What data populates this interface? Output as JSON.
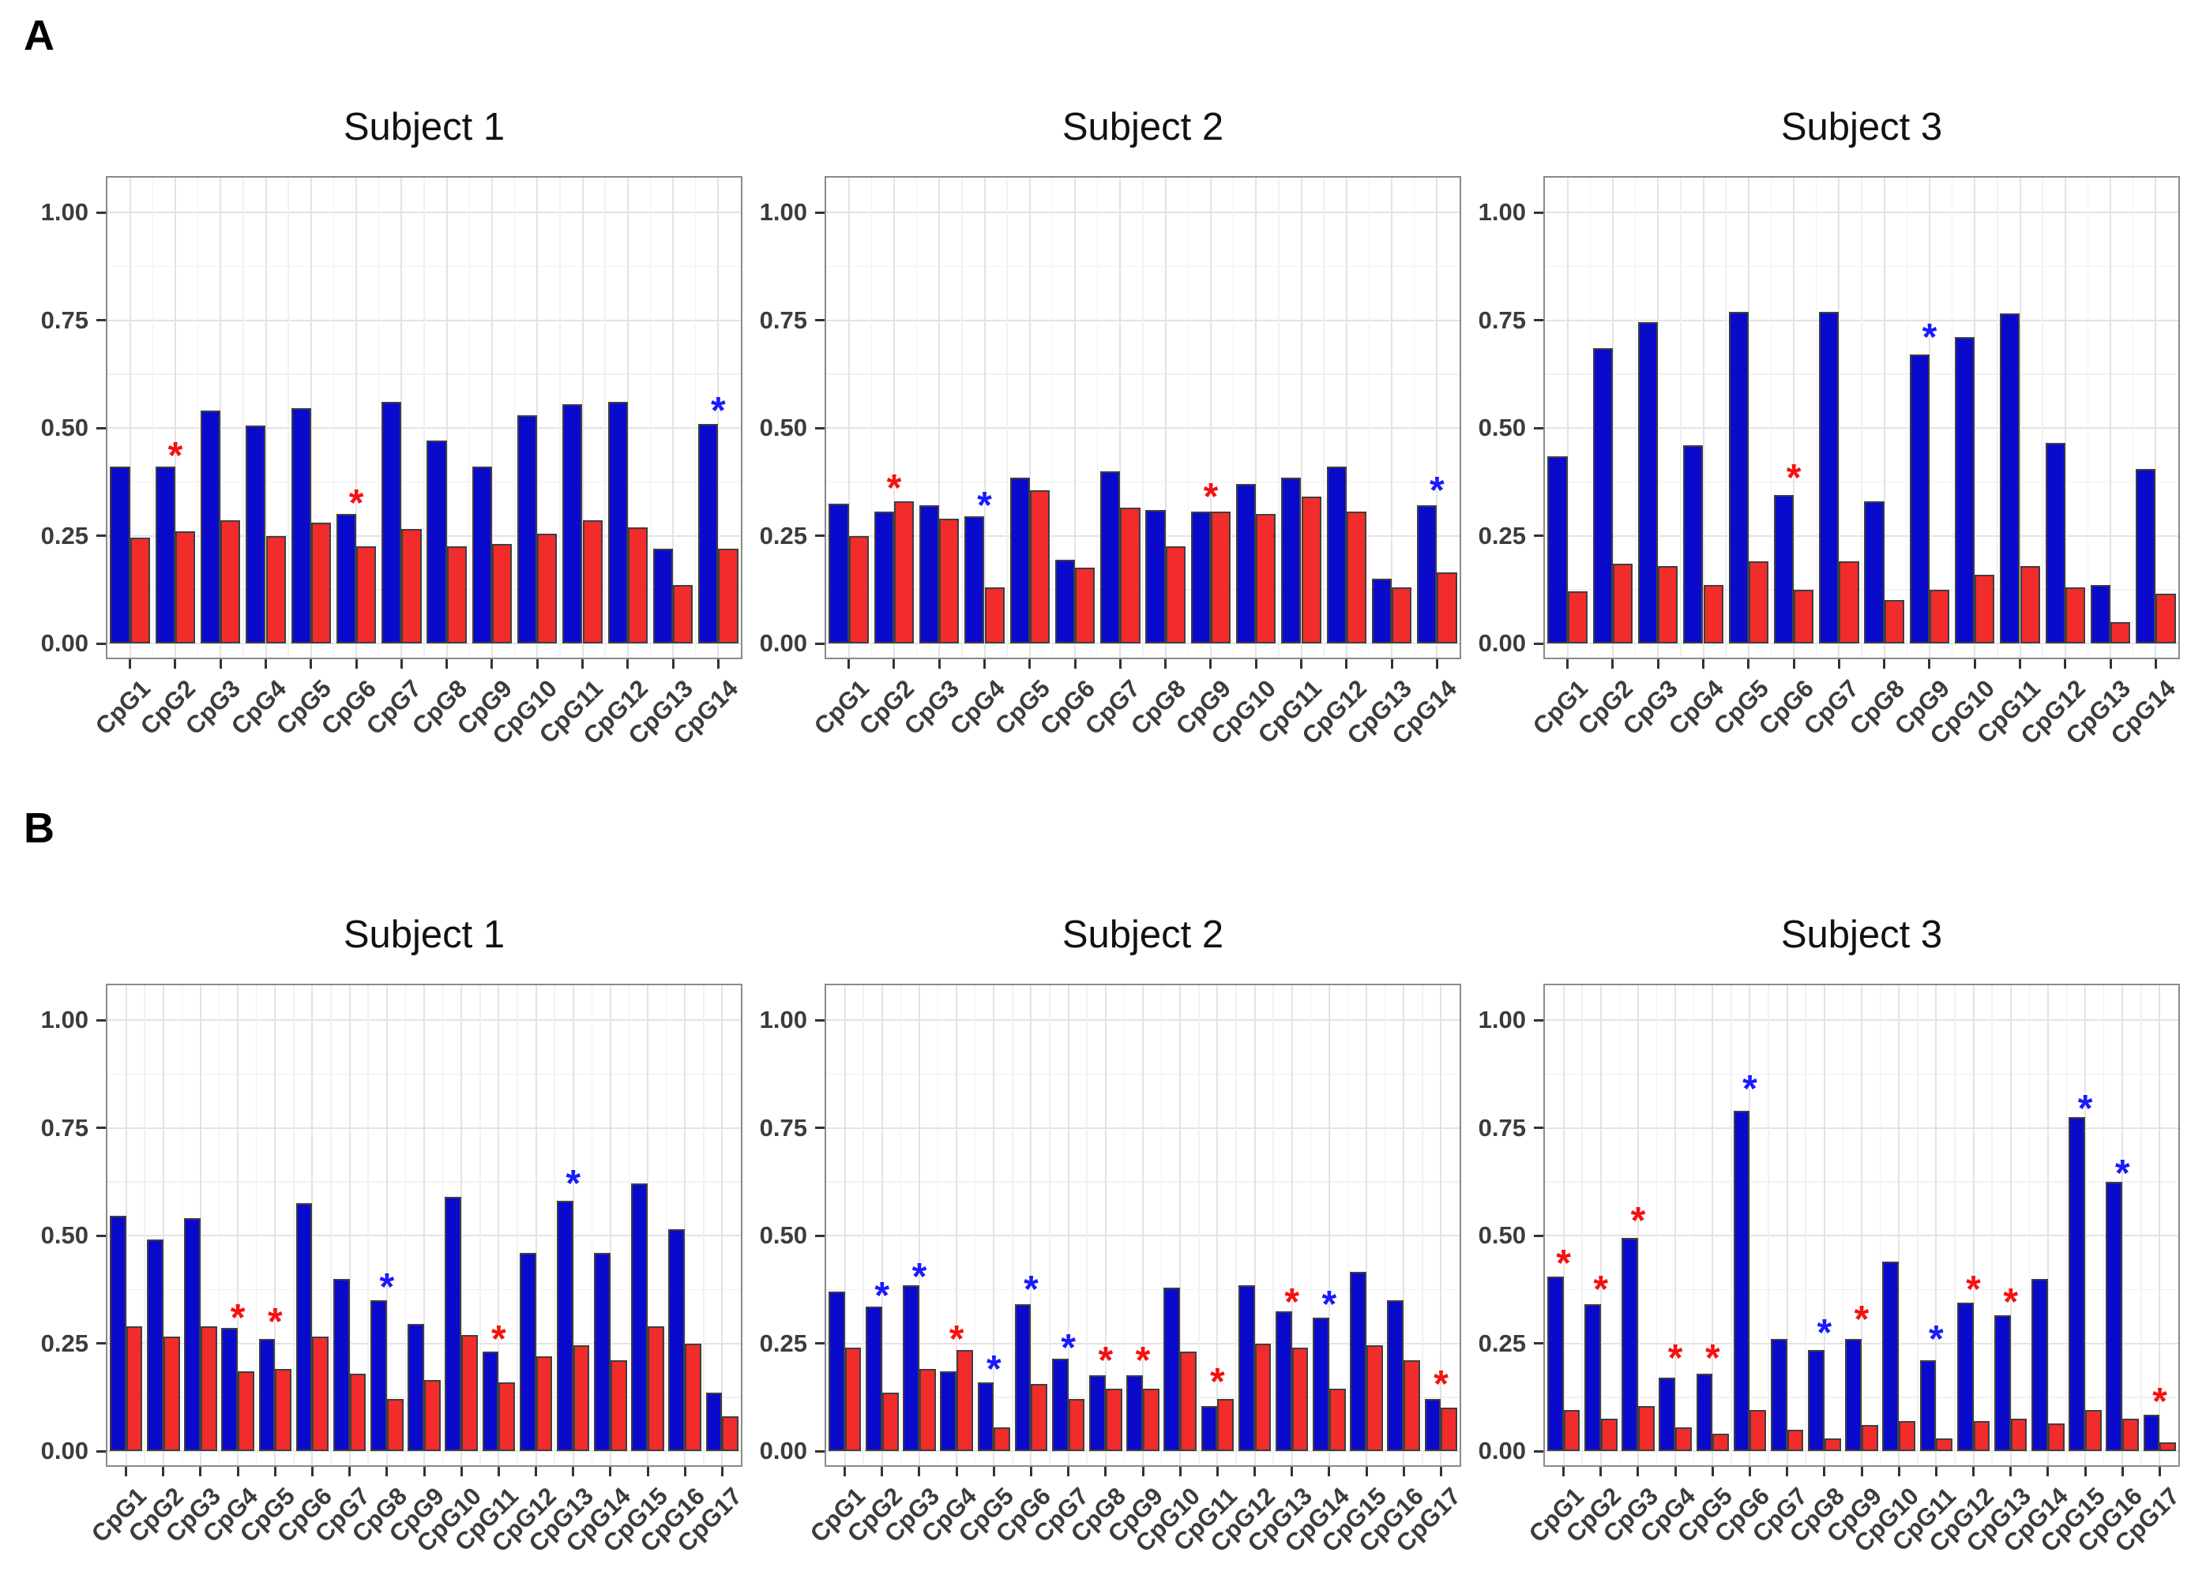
{
  "figure": {
    "panel_a_label": "A",
    "panel_b_label": "B",
    "asterisk_glyph": "*"
  },
  "palette": {
    "bar_blue": "#0a0acd",
    "bar_red": "#f22b2b",
    "bar_border": "#3f3f3f",
    "marker_red": "#f51111",
    "marker_blue": "#1a1afe",
    "grid_major": "#e3e3e3",
    "grid_minor": "#f1f1f1",
    "panel_border": "#8a8a8a",
    "axis_text": "#3c3c3c",
    "title_text": "#111111"
  },
  "axis": {
    "y_tick_labels": [
      "1.00",
      "0.75",
      "0.50",
      "0.25",
      "0.00"
    ],
    "y_tick_values": [
      1.0,
      0.75,
      0.5,
      0.25,
      0.0
    ],
    "y_minor_values": [
      0.875,
      0.625,
      0.375,
      0.125
    ],
    "ylim": [
      0,
      1.08
    ]
  },
  "chart_data": [
    {
      "type": "bar",
      "panel": "A",
      "title": "Subject 1",
      "categories": [
        "CpG1",
        "CpG2",
        "CpG3",
        "CpG4",
        "CpG5",
        "CpG6",
        "CpG7",
        "CpG8",
        "CpG9",
        "CpG10",
        "CpG11",
        "CpG12",
        "CpG13",
        "CpG14"
      ],
      "series": [
        {
          "name": "blue",
          "values": [
            0.41,
            0.41,
            0.54,
            0.505,
            0.545,
            0.3,
            0.56,
            0.47,
            0.41,
            0.53,
            0.555,
            0.56,
            0.22,
            0.51
          ]
        },
        {
          "name": "red",
          "values": [
            0.245,
            0.26,
            0.285,
            0.25,
            0.28,
            0.225,
            0.265,
            0.225,
            0.23,
            0.255,
            0.285,
            0.27,
            0.135,
            0.22
          ]
        }
      ],
      "markers": [
        {
          "category": "CpG2",
          "color": "red",
          "y": 0.45
        },
        {
          "category": "CpG6",
          "color": "red",
          "y": 0.34
        },
        {
          "category": "CpG14",
          "color": "blue",
          "y": 0.555
        }
      ]
    },
    {
      "type": "bar",
      "panel": "A",
      "title": "Subject 2",
      "categories": [
        "CpG1",
        "CpG2",
        "CpG3",
        "CpG4",
        "CpG5",
        "CpG6",
        "CpG7",
        "CpG8",
        "CpG9",
        "CpG10",
        "CpG11",
        "CpG12",
        "CpG13",
        "CpG14"
      ],
      "series": [
        {
          "name": "blue",
          "values": [
            0.325,
            0.305,
            0.32,
            0.295,
            0.385,
            0.195,
            0.4,
            0.31,
            0.305,
            0.37,
            0.385,
            0.41,
            0.15,
            0.32
          ]
        },
        {
          "name": "red",
          "values": [
            0.25,
            0.33,
            0.29,
            0.13,
            0.355,
            0.175,
            0.315,
            0.225,
            0.305,
            0.3,
            0.34,
            0.305,
            0.13,
            0.165
          ]
        }
      ],
      "markers": [
        {
          "category": "CpG2",
          "color": "red",
          "y": 0.375
        },
        {
          "category": "CpG4",
          "color": "blue",
          "y": 0.335
        },
        {
          "category": "CpG9",
          "color": "red",
          "y": 0.355
        },
        {
          "category": "CpG14",
          "color": "blue",
          "y": 0.37
        }
      ]
    },
    {
      "type": "bar",
      "panel": "A",
      "title": "Subject 3",
      "categories": [
        "CpG1",
        "CpG2",
        "CpG3",
        "CpG4",
        "CpG5",
        "CpG6",
        "CpG7",
        "CpG8",
        "CpG9",
        "CpG10",
        "CpG11",
        "CpG12",
        "CpG13",
        "CpG14"
      ],
      "series": [
        {
          "name": "blue",
          "values": [
            0.435,
            0.685,
            0.745,
            0.46,
            0.77,
            0.345,
            0.77,
            0.33,
            0.67,
            0.71,
            0.765,
            0.465,
            0.135,
            0.405
          ]
        },
        {
          "name": "red",
          "values": [
            0.12,
            0.185,
            0.18,
            0.135,
            0.19,
            0.125,
            0.19,
            0.1,
            0.125,
            0.16,
            0.18,
            0.13,
            0.05,
            0.115
          ]
        }
      ],
      "markers": [
        {
          "category": "CpG6",
          "color": "red",
          "y": 0.4
        },
        {
          "category": "CpG9",
          "color": "blue",
          "y": 0.725
        }
      ]
    },
    {
      "type": "bar",
      "panel": "B",
      "title": "Subject 1",
      "categories": [
        "CpG1",
        "CpG2",
        "CpG3",
        "CpG4",
        "CpG5",
        "CpG6",
        "CpG7",
        "CpG8",
        "CpG9",
        "CpG10",
        "CpG11",
        "CpG12",
        "CpG13",
        "CpG14",
        "CpG15",
        "CpG16",
        "CpG17"
      ],
      "series": [
        {
          "name": "blue",
          "values": [
            0.545,
            0.49,
            0.54,
            0.285,
            0.26,
            0.575,
            0.4,
            0.35,
            0.295,
            0.59,
            0.23,
            0.46,
            0.58,
            0.46,
            0.62,
            0.515,
            0.135
          ]
        },
        {
          "name": "red",
          "values": [
            0.29,
            0.265,
            0.29,
            0.185,
            0.19,
            0.265,
            0.18,
            0.12,
            0.165,
            0.27,
            0.16,
            0.22,
            0.245,
            0.21,
            0.29,
            0.25,
            0.08
          ]
        }
      ],
      "markers": [
        {
          "category": "CpG4",
          "color": "red",
          "y": 0.325
        },
        {
          "category": "CpG5",
          "color": "red",
          "y": 0.315
        },
        {
          "category": "CpG8",
          "color": "blue",
          "y": 0.395
        },
        {
          "category": "CpG11",
          "color": "red",
          "y": 0.275
        },
        {
          "category": "CpG13",
          "color": "blue",
          "y": 0.635
        }
      ]
    },
    {
      "type": "bar",
      "panel": "B",
      "title": "Subject 2",
      "categories": [
        "CpG1",
        "CpG2",
        "CpG3",
        "CpG4",
        "CpG5",
        "CpG6",
        "CpG7",
        "CpG8",
        "CpG9",
        "CpG10",
        "CpG11",
        "CpG12",
        "CpG13",
        "CpG14",
        "CpG15",
        "CpG16",
        "CpG17"
      ],
      "series": [
        {
          "name": "blue",
          "values": [
            0.37,
            0.335,
            0.385,
            0.185,
            0.16,
            0.34,
            0.215,
            0.175,
            0.175,
            0.38,
            0.105,
            0.385,
            0.325,
            0.31,
            0.415,
            0.35,
            0.12
          ]
        },
        {
          "name": "red",
          "values": [
            0.24,
            0.135,
            0.19,
            0.235,
            0.055,
            0.155,
            0.12,
            0.145,
            0.145,
            0.23,
            0.12,
            0.25,
            0.24,
            0.145,
            0.245,
            0.21,
            0.1
          ]
        }
      ],
      "markers": [
        {
          "category": "CpG2",
          "color": "blue",
          "y": 0.375
        },
        {
          "category": "CpG3",
          "color": "blue",
          "y": 0.42
        },
        {
          "category": "CpG4",
          "color": "red",
          "y": 0.275
        },
        {
          "category": "CpG5",
          "color": "blue",
          "y": 0.205
        },
        {
          "category": "CpG6",
          "color": "blue",
          "y": 0.39
        },
        {
          "category": "CpG7",
          "color": "blue",
          "y": 0.255
        },
        {
          "category": "CpG8",
          "color": "red",
          "y": 0.225
        },
        {
          "category": "CpG9",
          "color": "red",
          "y": 0.225
        },
        {
          "category": "CpG11",
          "color": "red",
          "y": 0.175
        },
        {
          "category": "CpG13",
          "color": "red",
          "y": 0.36
        },
        {
          "category": "CpG14",
          "color": "blue",
          "y": 0.355
        },
        {
          "category": "CpG17",
          "color": "red",
          "y": 0.17
        }
      ]
    },
    {
      "type": "bar",
      "panel": "B",
      "title": "Subject 3",
      "categories": [
        "CpG1",
        "CpG2",
        "CpG3",
        "CpG4",
        "CpG5",
        "CpG6",
        "CpG7",
        "CpG8",
        "CpG9",
        "CpG10",
        "CpG11",
        "CpG12",
        "CpG13",
        "CpG14",
        "CpG15",
        "CpG16",
        "CpG17"
      ],
      "series": [
        {
          "name": "blue",
          "values": [
            0.405,
            0.34,
            0.495,
            0.17,
            0.18,
            0.79,
            0.26,
            0.235,
            0.26,
            0.44,
            0.21,
            0.345,
            0.315,
            0.4,
            0.775,
            0.625,
            0.085
          ]
        },
        {
          "name": "red",
          "values": [
            0.095,
            0.075,
            0.105,
            0.055,
            0.04,
            0.095,
            0.05,
            0.03,
            0.06,
            0.07,
            0.03,
            0.07,
            0.075,
            0.065,
            0.095,
            0.075,
            0.02
          ]
        }
      ],
      "markers": [
        {
          "category": "CpG1",
          "color": "red",
          "y": 0.45
        },
        {
          "category": "CpG2",
          "color": "red",
          "y": 0.39
        },
        {
          "category": "CpG3",
          "color": "red",
          "y": 0.55
        },
        {
          "category": "CpG4",
          "color": "red",
          "y": 0.23
        },
        {
          "category": "CpG5",
          "color": "red",
          "y": 0.23
        },
        {
          "category": "CpG6",
          "color": "blue",
          "y": 0.855
        },
        {
          "category": "CpG8",
          "color": "blue",
          "y": 0.29
        },
        {
          "category": "CpG9",
          "color": "red",
          "y": 0.32
        },
        {
          "category": "CpG11",
          "color": "blue",
          "y": 0.275
        },
        {
          "category": "CpG12",
          "color": "red",
          "y": 0.39
        },
        {
          "category": "CpG13",
          "color": "red",
          "y": 0.36
        },
        {
          "category": "CpG15",
          "color": "blue",
          "y": 0.81
        },
        {
          "category": "CpG16",
          "color": "blue",
          "y": 0.66
        },
        {
          "category": "CpG17",
          "color": "red",
          "y": 0.13
        }
      ]
    }
  ]
}
